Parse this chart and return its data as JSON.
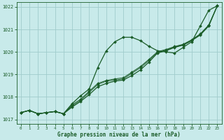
{
  "title": "Graphe pression niveau de la mer (hPa)",
  "bg_color": "#c8eaea",
  "grid_color": "#a0cccc",
  "line_color": "#1a5c28",
  "xlim": [
    -0.5,
    23.5
  ],
  "ylim": [
    1016.8,
    1022.2
  ],
  "xticks": [
    0,
    1,
    2,
    3,
    4,
    5,
    6,
    7,
    8,
    9,
    10,
    11,
    12,
    13,
    14,
    15,
    16,
    17,
    18,
    19,
    20,
    21,
    22,
    23
  ],
  "yticks": [
    1017,
    1018,
    1019,
    1020,
    1021,
    1022
  ],
  "series_curved": [
    1017.3,
    1017.4,
    1017.25,
    1017.3,
    1017.35,
    1017.25,
    1017.7,
    1018.05,
    1018.35,
    1019.3,
    1020.05,
    1020.45,
    1020.65,
    1020.65,
    1020.5,
    1020.25,
    1020.05,
    1020.0,
    1019.95,
    1020.2,
    1020.45,
    1021.15,
    1021.85,
    1022.05
  ],
  "series_straight": [
    1017.3,
    1017.4,
    1017.25,
    1017.3,
    1017.35,
    1017.25,
    1017.55,
    1017.8,
    1018.1,
    1018.45,
    1018.6,
    1018.7,
    1018.75,
    1018.95,
    1019.2,
    1019.55,
    1019.95,
    1020.05,
    1020.2,
    1020.3,
    1020.5,
    1020.75,
    1021.15,
    1022.05
  ],
  "series_extra1": [
    1017.3,
    1017.4,
    1017.25,
    1017.3,
    1017.35,
    1017.25,
    1017.6,
    1017.85,
    1018.2,
    1018.55,
    1018.7,
    1018.75,
    1018.8,
    1019.05,
    1019.3,
    1019.62,
    1019.98,
    1020.08,
    1020.22,
    1020.32,
    1020.52,
    1020.78,
    1021.18,
    1022.05
  ],
  "series_extra2": [
    1017.3,
    1017.4,
    1017.25,
    1017.3,
    1017.35,
    1017.25,
    1017.65,
    1017.9,
    1018.25,
    1018.6,
    1018.73,
    1018.8,
    1018.85,
    1019.1,
    1019.35,
    1019.67,
    1020.01,
    1020.11,
    1020.24,
    1020.34,
    1020.54,
    1020.8,
    1021.2,
    1022.05
  ]
}
